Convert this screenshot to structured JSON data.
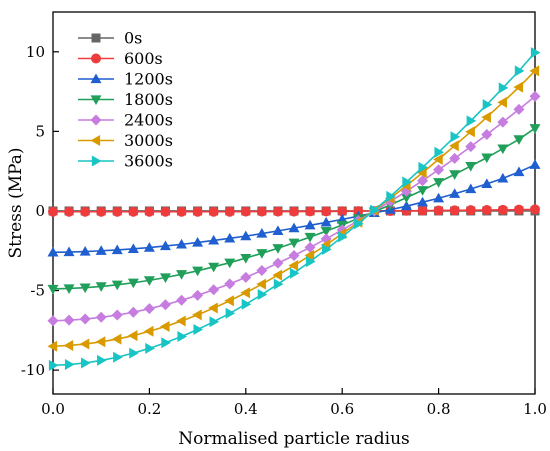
{
  "chart_data": {
    "type": "line",
    "xlabel": "Normalised particle radius",
    "ylabel": "Stress (MPa)",
    "xlim": [
      0.0,
      1.0
    ],
    "ylim": [
      -11.5,
      12.5
    ],
    "xticks": [
      "0.0",
      "0.2",
      "0.4",
      "0.6",
      "0.8",
      "1.0"
    ],
    "yticks": [
      "-10",
      "-5",
      "0",
      "5",
      "10"
    ],
    "grid": false,
    "legend_position": "top-left",
    "x": [
      0.0,
      0.0333,
      0.0667,
      0.1,
      0.1333,
      0.1667,
      0.2,
      0.2333,
      0.2667,
      0.3,
      0.3333,
      0.3667,
      0.4,
      0.4333,
      0.4667,
      0.5,
      0.5333,
      0.5667,
      0.6,
      0.6333,
      0.6667,
      0.7,
      0.7333,
      0.7667,
      0.8,
      0.8333,
      0.8667,
      0.9,
      0.9333,
      0.9667,
      1.0
    ],
    "series": [
      {
        "name": "0s",
        "color": "#666666",
        "marker": "square",
        "values": [
          0.0,
          0.0,
          0.0,
          0.0,
          0.0,
          0.0,
          0.0,
          0.0,
          0.0,
          0.0,
          0.0,
          0.0,
          0.0,
          0.0,
          0.0,
          0.0,
          0.0,
          0.0,
          0.0,
          0.0,
          0.0,
          0.0,
          0.0,
          0.0,
          0.0,
          0.0,
          0.0,
          0.0,
          0.0,
          0.0,
          0.0
        ]
      },
      {
        "name": "600s",
        "color": "#ee3b3b",
        "marker": "circle",
        "values": [
          -0.05,
          -0.05,
          -0.05,
          -0.05,
          -0.05,
          -0.05,
          -0.05,
          -0.05,
          -0.05,
          -0.05,
          -0.05,
          -0.05,
          -0.04,
          -0.04,
          -0.04,
          -0.04,
          -0.03,
          -0.03,
          -0.02,
          -0.01,
          0.0,
          0.0,
          0.01,
          0.02,
          0.03,
          0.04,
          0.05,
          0.06,
          0.07,
          0.08,
          0.1
        ]
      },
      {
        "name": "1200s",
        "color": "#1f5fcf",
        "marker": "triangle-up",
        "values": [
          -2.6,
          -2.58,
          -2.55,
          -2.5,
          -2.45,
          -2.38,
          -2.3,
          -2.2,
          -2.1,
          -1.98,
          -1.85,
          -1.72,
          -1.58,
          -1.42,
          -1.25,
          -1.08,
          -0.9,
          -0.72,
          -0.53,
          -0.33,
          -0.12,
          0.08,
          0.3,
          0.55,
          0.8,
          1.08,
          1.38,
          1.7,
          2.05,
          2.45,
          2.9
        ]
      },
      {
        "name": "1800s",
        "color": "#1f9f5a",
        "marker": "triangle-down",
        "values": [
          -4.9,
          -4.87,
          -4.82,
          -4.74,
          -4.64,
          -4.51,
          -4.36,
          -4.18,
          -3.98,
          -3.76,
          -3.51,
          -3.25,
          -2.96,
          -2.66,
          -2.34,
          -2.0,
          -1.64,
          -1.27,
          -0.88,
          -0.47,
          -0.05,
          0.38,
          0.84,
          1.3,
          1.8,
          2.3,
          2.82,
          3.35,
          3.92,
          4.5,
          5.2
        ]
      },
      {
        "name": "2400s",
        "color": "#c77ce0",
        "marker": "diamond",
        "values": [
          -6.9,
          -6.86,
          -6.79,
          -6.68,
          -6.54,
          -6.36,
          -6.14,
          -5.89,
          -5.61,
          -5.3,
          -4.95,
          -4.58,
          -4.17,
          -3.74,
          -3.28,
          -2.8,
          -2.29,
          -1.75,
          -1.19,
          -0.61,
          -0.01,
          0.6,
          1.24,
          1.9,
          2.59,
          3.3,
          4.04,
          4.8,
          5.58,
          6.38,
          7.2
        ]
      },
      {
        "name": "3000s",
        "color": "#d99a00",
        "marker": "triangle-left",
        "values": [
          -8.5,
          -8.45,
          -8.36,
          -8.22,
          -8.05,
          -7.83,
          -7.56,
          -7.26,
          -6.91,
          -6.53,
          -6.1,
          -5.64,
          -5.14,
          -4.6,
          -4.03,
          -3.43,
          -2.79,
          -2.13,
          -1.43,
          -0.71,
          0.04,
          0.8,
          1.59,
          2.4,
          3.24,
          4.1,
          4.98,
          5.89,
          6.82,
          7.78,
          8.8
        ]
      },
      {
        "name": "3600s",
        "color": "#19c4c4",
        "marker": "triangle-right",
        "values": [
          -9.7,
          -9.65,
          -9.55,
          -9.39,
          -9.19,
          -8.93,
          -8.63,
          -8.28,
          -7.89,
          -7.45,
          -6.96,
          -6.43,
          -5.86,
          -5.25,
          -4.6,
          -3.91,
          -3.18,
          -2.42,
          -1.63,
          -0.8,
          0.05,
          0.92,
          1.82,
          2.74,
          3.69,
          4.66,
          5.66,
          6.68,
          7.73,
          8.8,
          9.95
        ]
      }
    ]
  }
}
